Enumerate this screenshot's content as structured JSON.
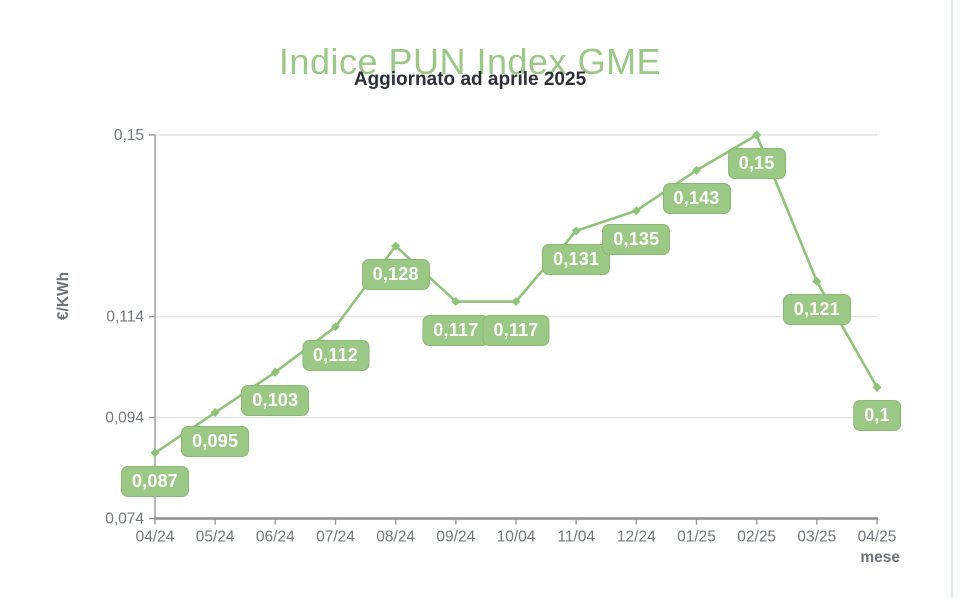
{
  "chart_data": {
    "type": "line",
    "title": "Indice PUN Index GME",
    "subtitle": "Aggiornato ad aprile 2025",
    "xlabel": "mese",
    "ylabel": "€/KWh",
    "categories": [
      "04/24",
      "05/24",
      "06/24",
      "07/24",
      "08/24",
      "09/24",
      "10/04",
      "11/04",
      "12/24",
      "01/25",
      "02/25",
      "03/25",
      "04/25"
    ],
    "values": [
      0.087,
      0.095,
      0.103,
      0.112,
      0.128,
      0.117,
      0.117,
      0.131,
      0.135,
      0.143,
      0.15,
      0.121,
      0.1
    ],
    "point_labels": [
      "0,087",
      "0,095",
      "0,103",
      "0,112",
      "0,128",
      "0,117",
      "0,117",
      "0,131",
      "0,135",
      "0,143",
      "0,15",
      "0,121",
      "0,1"
    ],
    "ylim": [
      0.074,
      0.15
    ],
    "y_ticks": [
      {
        "value": 0.074,
        "label": "0,074"
      },
      {
        "value": 0.094,
        "label": "0,094"
      },
      {
        "value": 0.114,
        "label": "0,114"
      },
      {
        "value": 0.15,
        "label": "0,15"
      }
    ],
    "grid": true,
    "legend": "none",
    "colors": {
      "line": "#8fc379",
      "marker": "#8fc379",
      "label_box": "#9bc985",
      "label_text": "#ffffff",
      "title": "#9cc887",
      "subtitle": "#2d2f39",
      "axis_text": "#72767e",
      "axis_title": "#6d717a",
      "axis_line": "#9a9a9a",
      "gridline": "#e4e4e4"
    }
  }
}
